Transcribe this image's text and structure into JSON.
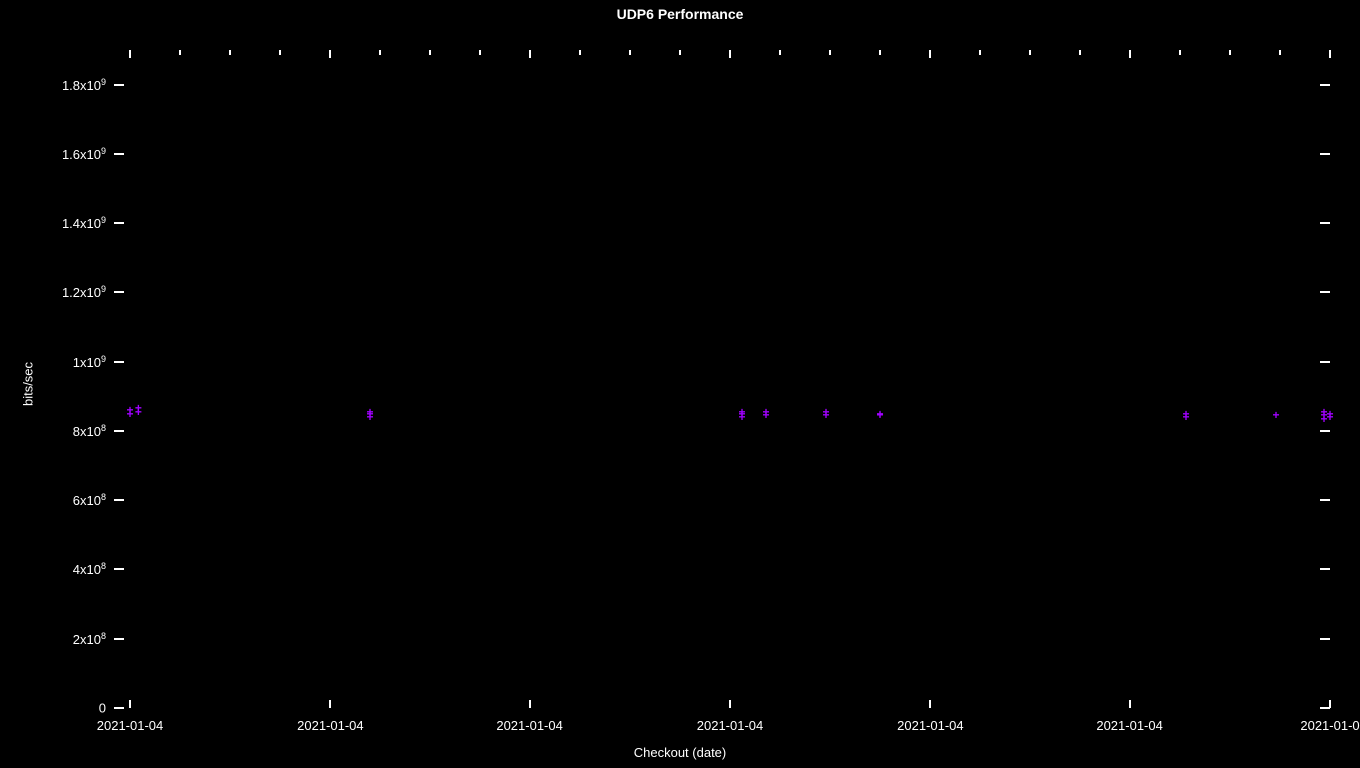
{
  "chart": {
    "type": "scatter",
    "title": "UDP6 Performance",
    "title_fontsize": 14,
    "title_color": "#ffffff",
    "background_color": "#000000",
    "marker_color": "#a000ff",
    "marker_symbol": "+",
    "marker_fontsize": 12,
    "xlabel": "Checkout (date)",
    "ylabel": "bits/sec",
    "label_color": "#ffffff",
    "label_fontsize": 13,
    "tick_color": "#ffffff",
    "ylim": [
      0,
      1900000000.0
    ],
    "yticks": [
      {
        "value": 0,
        "label": "0"
      },
      {
        "value": 200000000.0,
        "label": "2x10"
      },
      {
        "value": 400000000.0,
        "label": "4x10"
      },
      {
        "value": 600000000.0,
        "label": "6x10"
      },
      {
        "value": 800000000.0,
        "label": "8x10"
      },
      {
        "value": 1000000000.0,
        "label": "1x10"
      },
      {
        "value": 1200000000.0,
        "label": "1.2x10"
      },
      {
        "value": 1400000000.0,
        "label": "1.4x10"
      },
      {
        "value": 1600000000.0,
        "label": "1.6x10"
      },
      {
        "value": 1800000000.0,
        "label": "1.8x10"
      }
    ],
    "ytick_exponents": [
      null,
      "8",
      "8",
      "8",
      "8",
      "9",
      "9",
      "9",
      "9",
      "9"
    ],
    "xtick_labels": [
      "2021-01-04",
      "2021-01-04",
      "2021-01-04",
      "2021-01-04",
      "2021-01-04",
      "2021-01-04",
      "2021-01-0"
    ],
    "xtick_major_positions": [
      0.0,
      0.167,
      0.333,
      0.5,
      0.667,
      0.833,
      1.0
    ],
    "xtick_minor_positions": [
      0.042,
      0.083,
      0.125,
      0.208,
      0.25,
      0.292,
      0.375,
      0.417,
      0.458,
      0.542,
      0.583,
      0.625,
      0.708,
      0.75,
      0.792,
      0.875,
      0.917,
      0.958
    ],
    "data_points": [
      {
        "x": 0.0,
        "y": 850000000.0
      },
      {
        "x": 0.0,
        "y": 860000000.0
      },
      {
        "x": 0.007,
        "y": 855000000.0
      },
      {
        "x": 0.007,
        "y": 865000000.0
      },
      {
        "x": 0.2,
        "y": 850000000.0
      },
      {
        "x": 0.2,
        "y": 855000000.0
      },
      {
        "x": 0.2,
        "y": 840000000.0
      },
      {
        "x": 0.51,
        "y": 850000000.0
      },
      {
        "x": 0.51,
        "y": 855000000.0
      },
      {
        "x": 0.51,
        "y": 840000000.0
      },
      {
        "x": 0.53,
        "y": 845000000.0
      },
      {
        "x": 0.53,
        "y": 855000000.0
      },
      {
        "x": 0.58,
        "y": 845000000.0
      },
      {
        "x": 0.58,
        "y": 855000000.0
      },
      {
        "x": 0.625,
        "y": 845000000.0
      },
      {
        "x": 0.625,
        "y": 850000000.0
      },
      {
        "x": 0.88,
        "y": 840000000.0
      },
      {
        "x": 0.88,
        "y": 850000000.0
      },
      {
        "x": 0.955,
        "y": 845000000.0
      },
      {
        "x": 0.995,
        "y": 835000000.0
      },
      {
        "x": 0.995,
        "y": 845000000.0
      },
      {
        "x": 0.995,
        "y": 855000000.0
      },
      {
        "x": 1.0,
        "y": 840000000.0
      },
      {
        "x": 1.0,
        "y": 850000000.0
      }
    ]
  }
}
